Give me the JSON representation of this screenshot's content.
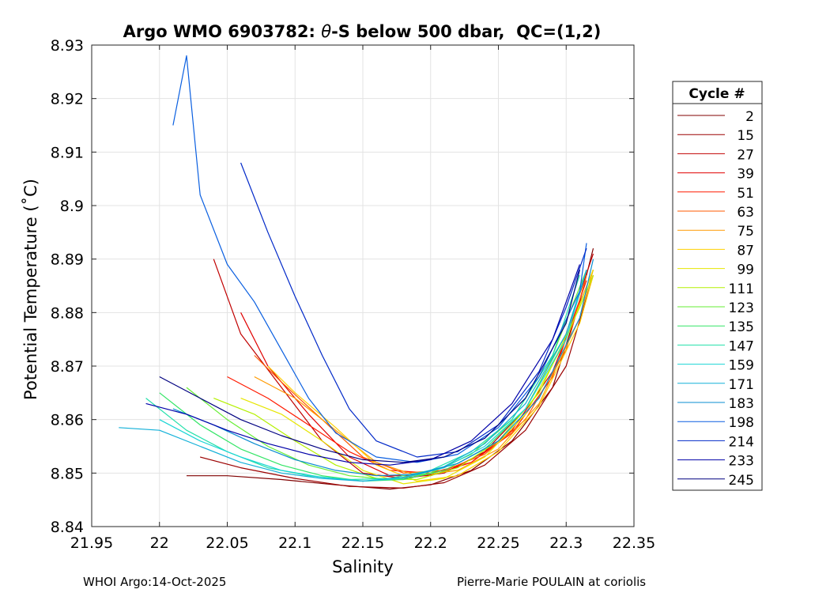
{
  "chart_data": {
    "type": "line",
    "title_prefix": "Argo WMO 6903782: ",
    "title_symbol": "θ",
    "title_suffix": "-S below 500 dbar,  QC=(1,2)",
    "xlabel": "Salinity",
    "ylabel": "Potential Temperature (˚C)",
    "xlim": [
      21.95,
      22.35
    ],
    "ylim": [
      8.84,
      8.93
    ],
    "xticks": [
      "21.95",
      "22",
      "22.05",
      "22.1",
      "22.15",
      "22.2",
      "22.25",
      "22.3",
      "22.35"
    ],
    "yticks": [
      "8.84",
      "8.85",
      "8.86",
      "8.87",
      "8.88",
      "8.89",
      "8.9",
      "8.91",
      "8.92",
      "8.93"
    ],
    "grid": true,
    "legend_title": "Cycle #",
    "legend_position": "right outside",
    "series": [
      {
        "name": "2",
        "color": "#800000",
        "profile": [
          [
            22.02,
            8.8495
          ],
          [
            22.05,
            8.8495
          ],
          [
            22.09,
            8.8488
          ],
          [
            22.13,
            8.8478
          ],
          [
            22.17,
            8.847
          ],
          [
            22.2,
            8.8478
          ],
          [
            22.23,
            8.8505
          ],
          [
            22.26,
            8.856
          ],
          [
            22.29,
            8.866
          ],
          [
            22.31,
            8.882
          ],
          [
            22.32,
            8.892
          ]
        ]
      },
      {
        "name": "15",
        "color": "#9b0000",
        "profile": [
          [
            22.03,
            8.853
          ],
          [
            22.06,
            8.851
          ],
          [
            22.1,
            8.849
          ],
          [
            22.14,
            8.8475
          ],
          [
            22.18,
            8.8472
          ],
          [
            22.21,
            8.8482
          ],
          [
            22.24,
            8.8515
          ],
          [
            22.27,
            8.858
          ],
          [
            22.3,
            8.87
          ],
          [
            22.32,
            8.887
          ]
        ]
      },
      {
        "name": "27",
        "color": "#c00000",
        "profile": [
          [
            22.04,
            8.89
          ],
          [
            22.06,
            8.876
          ],
          [
            22.09,
            8.866
          ],
          [
            22.12,
            8.856
          ],
          [
            22.15,
            8.85
          ],
          [
            22.18,
            8.849
          ],
          [
            22.21,
            8.85
          ],
          [
            22.24,
            8.854
          ],
          [
            22.27,
            8.862
          ],
          [
            22.3,
            8.876
          ],
          [
            22.32,
            8.891
          ]
        ]
      },
      {
        "name": "39",
        "color": "#e00000",
        "profile": [
          [
            22.06,
            8.88
          ],
          [
            22.08,
            8.87
          ],
          [
            22.11,
            8.861
          ],
          [
            22.14,
            8.853
          ],
          [
            22.17,
            8.8495
          ],
          [
            22.2,
            8.8495
          ],
          [
            22.23,
            8.852
          ],
          [
            22.26,
            8.858
          ],
          [
            22.29,
            8.869
          ],
          [
            22.32,
            8.888
          ]
        ]
      },
      {
        "name": "51",
        "color": "#ff1a00",
        "profile": [
          [
            22.05,
            8.868
          ],
          [
            22.08,
            8.864
          ],
          [
            22.11,
            8.859
          ],
          [
            22.14,
            8.854
          ],
          [
            22.17,
            8.8505
          ],
          [
            22.2,
            8.85
          ],
          [
            22.23,
            8.852
          ],
          [
            22.26,
            8.8575
          ],
          [
            22.29,
            8.868
          ],
          [
            22.315,
            8.886
          ]
        ]
      },
      {
        "name": "63",
        "color": "#ff5a00",
        "profile": [
          [
            22.07,
            8.872
          ],
          [
            22.09,
            8.867
          ],
          [
            22.12,
            8.86
          ],
          [
            22.15,
            8.853
          ],
          [
            22.18,
            8.85
          ],
          [
            22.21,
            8.8505
          ],
          [
            22.24,
            8.8535
          ],
          [
            22.27,
            8.86
          ],
          [
            22.3,
            8.873
          ],
          [
            22.315,
            8.887
          ]
        ]
      },
      {
        "name": "75",
        "color": "#ff9a00",
        "profile": [
          [
            22.07,
            8.868
          ],
          [
            22.1,
            8.864
          ],
          [
            22.13,
            8.858
          ],
          [
            22.16,
            8.852
          ],
          [
            22.19,
            8.8495
          ],
          [
            22.22,
            8.8505
          ],
          [
            22.25,
            8.8545
          ],
          [
            22.28,
            8.863
          ],
          [
            22.31,
            8.879
          ],
          [
            22.32,
            8.888
          ]
        ]
      },
      {
        "name": "87",
        "color": "#ffd000",
        "profile": [
          [
            22.08,
            8.87
          ],
          [
            22.1,
            8.865
          ],
          [
            22.13,
            8.8585
          ],
          [
            22.16,
            8.8515
          ],
          [
            22.19,
            8.8485
          ],
          [
            22.22,
            8.8495
          ],
          [
            22.25,
            8.854
          ],
          [
            22.28,
            8.8625
          ],
          [
            22.31,
            8.878
          ],
          [
            22.32,
            8.887
          ]
        ]
      },
      {
        "name": "99",
        "color": "#e6e600",
        "profile": [
          [
            22.06,
            8.864
          ],
          [
            22.09,
            8.861
          ],
          [
            22.12,
            8.856
          ],
          [
            22.15,
            8.8505
          ],
          [
            22.18,
            8.848
          ],
          [
            22.21,
            8.849
          ],
          [
            22.24,
            8.853
          ],
          [
            22.27,
            8.861
          ],
          [
            22.3,
            8.875
          ],
          [
            22.32,
            8.888
          ]
        ]
      },
      {
        "name": "111",
        "color": "#b4f000",
        "profile": [
          [
            22.04,
            8.864
          ],
          [
            22.07,
            8.861
          ],
          [
            22.1,
            8.856
          ],
          [
            22.13,
            8.8515
          ],
          [
            22.16,
            8.849
          ],
          [
            22.19,
            8.8488
          ],
          [
            22.22,
            8.851
          ],
          [
            22.25,
            8.856
          ],
          [
            22.28,
            8.865
          ],
          [
            22.31,
            8.881
          ],
          [
            22.32,
            8.887
          ]
        ]
      },
      {
        "name": "123",
        "color": "#66ee33",
        "profile": [
          [
            22.02,
            8.866
          ],
          [
            22.05,
            8.86
          ],
          [
            22.08,
            8.855
          ],
          [
            22.11,
            8.8515
          ],
          [
            22.14,
            8.8495
          ],
          [
            22.17,
            8.8488
          ],
          [
            22.2,
            8.85
          ],
          [
            22.23,
            8.8535
          ],
          [
            22.26,
            8.86
          ],
          [
            22.29,
            8.872
          ],
          [
            22.315,
            8.888
          ]
        ]
      },
      {
        "name": "135",
        "color": "#33e566",
        "profile": [
          [
            22.0,
            8.865
          ],
          [
            22.03,
            8.859
          ],
          [
            22.06,
            8.8545
          ],
          [
            22.09,
            8.8515
          ],
          [
            22.12,
            8.8495
          ],
          [
            22.15,
            8.8485
          ],
          [
            22.18,
            8.8488
          ],
          [
            22.21,
            8.8505
          ],
          [
            22.24,
            8.8545
          ],
          [
            22.27,
            8.862
          ],
          [
            22.3,
            8.876
          ],
          [
            22.315,
            8.888
          ]
        ]
      },
      {
        "name": "147",
        "color": "#22e0aa",
        "profile": [
          [
            21.99,
            8.864
          ],
          [
            22.02,
            8.858
          ],
          [
            22.05,
            8.854
          ],
          [
            22.08,
            8.851
          ],
          [
            22.11,
            8.8495
          ],
          [
            22.14,
            8.8488
          ],
          [
            22.17,
            8.849
          ],
          [
            22.2,
            8.8505
          ],
          [
            22.23,
            8.854
          ],
          [
            22.26,
            8.86
          ],
          [
            22.29,
            8.872
          ],
          [
            22.31,
            8.887
          ]
        ]
      },
      {
        "name": "159",
        "color": "#1ad5d5",
        "profile": [
          [
            22.0,
            8.86
          ],
          [
            22.03,
            8.856
          ],
          [
            22.06,
            8.853
          ],
          [
            22.09,
            8.8505
          ],
          [
            22.12,
            8.8492
          ],
          [
            22.15,
            8.8485
          ],
          [
            22.18,
            8.849
          ],
          [
            22.21,
            8.851
          ],
          [
            22.24,
            8.855
          ],
          [
            22.27,
            8.862
          ],
          [
            22.3,
            8.875
          ],
          [
            22.315,
            8.888
          ]
        ]
      },
      {
        "name": "171",
        "color": "#12b0d8",
        "profile": [
          [
            21.97,
            8.8585
          ],
          [
            22.0,
            8.858
          ],
          [
            22.03,
            8.855
          ],
          [
            22.06,
            8.852
          ],
          [
            22.09,
            8.85
          ],
          [
            22.12,
            8.849
          ],
          [
            22.15,
            8.8485
          ],
          [
            22.18,
            8.8492
          ],
          [
            22.21,
            8.8512
          ],
          [
            22.24,
            8.8555
          ],
          [
            22.27,
            8.863
          ],
          [
            22.3,
            8.876
          ],
          [
            22.315,
            8.888
          ]
        ]
      },
      {
        "name": "183",
        "color": "#0a8cd0",
        "profile": [
          [
            22.01,
            8.862
          ],
          [
            22.04,
            8.859
          ],
          [
            22.07,
            8.8555
          ],
          [
            22.1,
            8.8525
          ],
          [
            22.13,
            8.8505
          ],
          [
            22.16,
            8.8495
          ],
          [
            22.19,
            8.8498
          ],
          [
            22.22,
            8.8518
          ],
          [
            22.25,
            8.856
          ],
          [
            22.28,
            8.864
          ],
          [
            22.31,
            8.879
          ],
          [
            22.32,
            8.89
          ]
        ]
      },
      {
        "name": "198",
        "color": "#0a5fe0",
        "profile": [
          [
            22.01,
            8.915
          ],
          [
            22.02,
            8.928
          ],
          [
            22.03,
            8.902
          ],
          [
            22.05,
            8.889
          ],
          [
            22.07,
            8.882
          ],
          [
            22.09,
            8.873
          ],
          [
            22.11,
            8.864
          ],
          [
            22.13,
            8.8575
          ],
          [
            22.16,
            8.853
          ],
          [
            22.19,
            8.852
          ],
          [
            22.22,
            8.8535
          ],
          [
            22.25,
            8.8585
          ],
          [
            22.28,
            8.868
          ],
          [
            22.31,
            8.884
          ],
          [
            22.315,
            8.893
          ]
        ]
      },
      {
        "name": "214",
        "color": "#0028c8",
        "profile": [
          [
            22.06,
            8.908
          ],
          [
            22.08,
            8.895
          ],
          [
            22.1,
            8.883
          ],
          [
            22.12,
            8.872
          ],
          [
            22.14,
            8.862
          ],
          [
            22.16,
            8.856
          ],
          [
            22.19,
            8.853
          ],
          [
            22.22,
            8.854
          ],
          [
            22.25,
            8.859
          ],
          [
            22.28,
            8.869
          ],
          [
            22.3,
            8.881
          ],
          [
            22.315,
            8.892
          ]
        ]
      },
      {
        "name": "233",
        "color": "#0000a8",
        "profile": [
          [
            21.99,
            8.863
          ],
          [
            22.02,
            8.861
          ],
          [
            22.05,
            8.858
          ],
          [
            22.08,
            8.8555
          ],
          [
            22.11,
            8.8535
          ],
          [
            22.14,
            8.852
          ],
          [
            22.17,
            8.8515
          ],
          [
            22.2,
            8.8525
          ],
          [
            22.23,
            8.856
          ],
          [
            22.26,
            8.863
          ],
          [
            22.29,
            8.875
          ],
          [
            22.31,
            8.889
          ]
        ]
      },
      {
        "name": "245",
        "color": "#000080",
        "profile": [
          [
            22.0,
            8.868
          ],
          [
            22.03,
            8.864
          ],
          [
            22.06,
            8.86
          ],
          [
            22.09,
            8.857
          ],
          [
            22.12,
            8.8545
          ],
          [
            22.15,
            8.8525
          ],
          [
            22.18,
            8.852
          ],
          [
            22.21,
            8.853
          ],
          [
            22.24,
            8.8565
          ],
          [
            22.27,
            8.864
          ],
          [
            22.3,
            8.878
          ],
          [
            22.31,
            8.888
          ]
        ]
      }
    ]
  },
  "footer": {
    "left": "WHOI Argo:14-Oct-2025",
    "right": "Pierre-Marie POULAIN at coriolis"
  }
}
